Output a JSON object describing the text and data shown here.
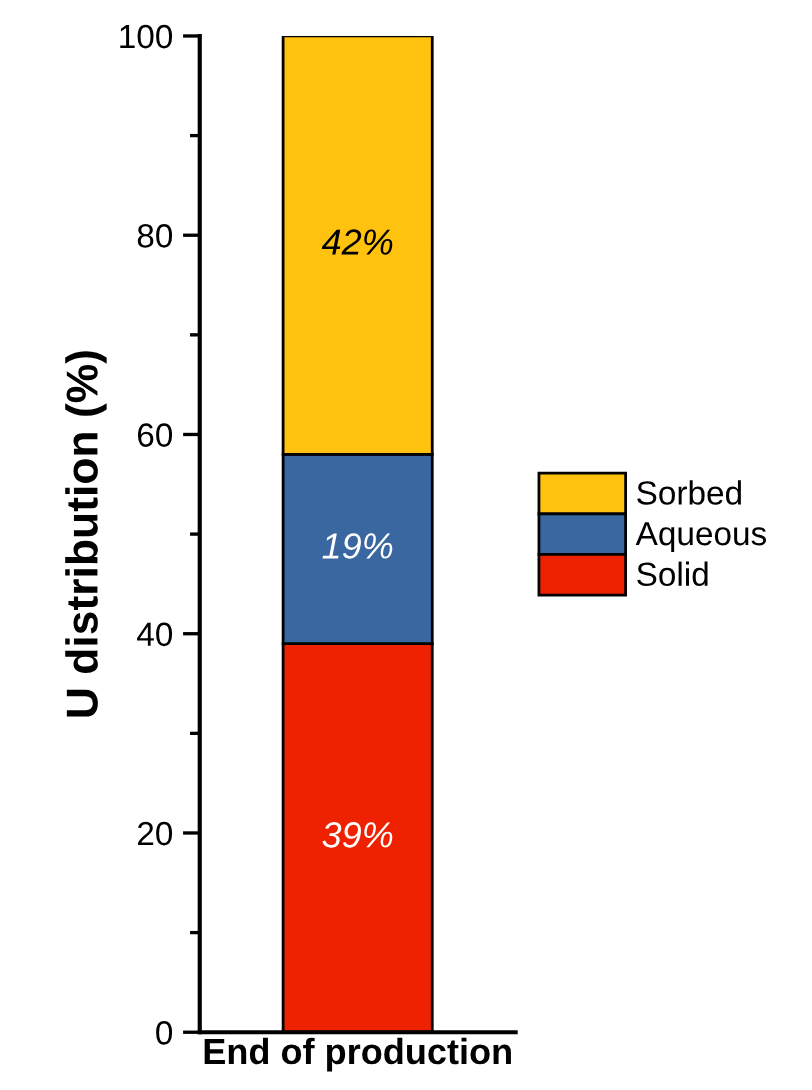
{
  "chart_data": {
    "type": "bar",
    "stacked": true,
    "ylabel": "U distribution (%)",
    "categories": [
      "End of production"
    ],
    "series": [
      {
        "name": "Solid",
        "color": "#ee2200",
        "values": [
          39
        ],
        "value_labels": [
          "39%"
        ]
      },
      {
        "name": "Aqueous",
        "color": "#3a67a0",
        "values": [
          19
        ],
        "value_labels": [
          "19%"
        ]
      },
      {
        "name": "Sorbed",
        "color": "#ffc20e",
        "values": [
          42
        ],
        "value_labels": [
          "42%"
        ]
      }
    ],
    "ylim": [
      0,
      100
    ],
    "yticks": [
      0,
      20,
      40,
      60,
      80,
      100
    ],
    "grid": false,
    "legend": "right"
  }
}
